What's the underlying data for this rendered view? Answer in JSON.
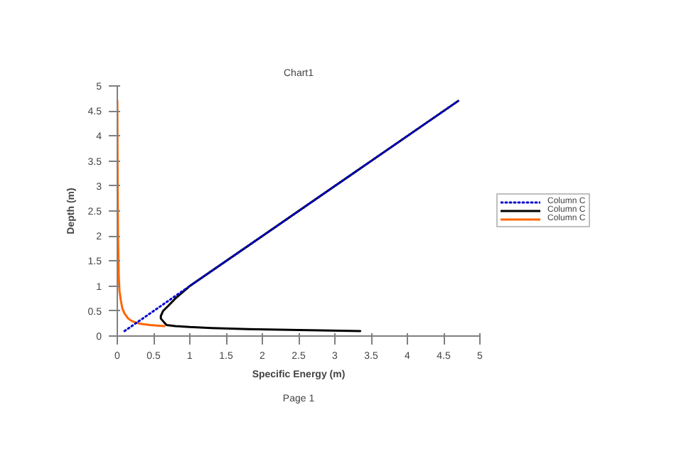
{
  "chart_data": {
    "type": "line",
    "title": "Chart1",
    "xlabel": "Specific Energy (m)",
    "ylabel": "Depth (m)",
    "annotations": [
      "Page 1"
    ],
    "xlim": [
      0,
      5
    ],
    "ylim": [
      0,
      5
    ],
    "xticks": [
      0,
      0.5,
      1,
      1.5,
      2,
      2.5,
      3,
      3.5,
      4,
      4.5,
      5
    ],
    "yticks": [
      0,
      0.5,
      1,
      1.5,
      2,
      2.5,
      3,
      3.5,
      4,
      4.5,
      5
    ],
    "grid": false,
    "legend": "right",
    "marker": "none",
    "series": [
      {
        "name": "Column C",
        "color": "#0000cc",
        "line_style": "dotted",
        "x": [
          0.1,
          4.7
        ],
        "values": [
          0.1,
          4.7
        ]
      },
      {
        "name": "Column C",
        "color": "#000000",
        "line_style": "solid",
        "x": [
          3.35,
          2.5,
          1.8,
          1.3,
          1.0,
          0.8,
          0.68,
          0.66,
          0.63,
          0.6,
          0.6,
          0.63,
          0.7,
          0.8,
          1.0,
          2.0,
          3.0,
          4.7
        ],
        "values": [
          0.1,
          0.12,
          0.14,
          0.16,
          0.18,
          0.2,
          0.22,
          0.25,
          0.3,
          0.35,
          0.4,
          0.5,
          0.6,
          0.75,
          1.0,
          2.0,
          3.0,
          4.7
        ]
      },
      {
        "name": "Column C",
        "color": "#ff6600",
        "line_style": "solid",
        "x": [
          0.65,
          0.45,
          0.3,
          0.2,
          0.15,
          0.1,
          0.07,
          0.05,
          0.03,
          0.02,
          0.01,
          0.005,
          0.0
        ],
        "values": [
          0.2,
          0.22,
          0.25,
          0.3,
          0.35,
          0.45,
          0.55,
          0.7,
          0.9,
          1.2,
          2.0,
          3.0,
          4.7
        ]
      }
    ]
  }
}
